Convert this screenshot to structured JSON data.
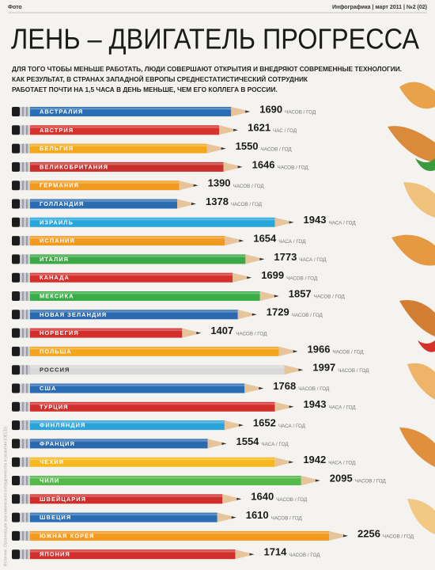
{
  "header": {
    "left": "Фото",
    "right": "Инфографика | март 2011 | №2 (02)"
  },
  "chart_data": {
    "type": "bar",
    "orientation": "horizontal",
    "title": "ЛЕНЬ – ДВИГАТЕЛЬ ПРОГРЕССА",
    "subtitle": [
      "ДЛЯ ТОГО ЧТОБЫ МЕНЬШЕ РАБОТАТЬ, ЛЮДИ СОВЕРШАЮТ ОТКРЫТИЯ И ВНЕДРЯЮТ СОВРЕМЕННЫЕ ТЕХНОЛОГИИ.",
      "КАК РЕЗУЛЬТАТ, В СТРАНАХ ЗАПАДНОЙ ЕВРОПЫ СРЕДНЕСТАТИСТИЧЕСКИЙ СОТРУДНИК",
      "РАБОТАЕТ ПОЧТИ НА 1,5 ЧАСА В ДЕНЬ МЕНЬШЕ, ЧЕМ ЕГО КОЛЛЕГА В РОССИИ."
    ],
    "source": "Источник: Организация экономического сотрудничества и развития (OECD)",
    "categories": [
      "АВСТРАЛИЯ",
      "АВСТРИЯ",
      "БЕЛЬГИЯ",
      "ВЕЛИКОБРИТАНИЯ",
      "ГЕРМАНИЯ",
      "ГОЛЛАНДИЯ",
      "ИЗРАИЛЬ",
      "ИСПАНИЯ",
      "ИТАЛИЯ",
      "КАНАДА",
      "МЕКСИКА",
      "НОВАЯ ЗЕЛАНДИЯ",
      "НОРВЕГИЯ",
      "ПОЛЬША",
      "РОССИЯ",
      "США",
      "ТУРЦИЯ",
      "ФИНЛЯНДИЯ",
      "ФРАНЦИЯ",
      "ЧЕХИЯ",
      "ЧИЛИ",
      "ШВЕЙЦАРИЯ",
      "ШВЕЦИЯ",
      "ЮЖНАЯ КОРЕЯ",
      "ЯПОНИЯ"
    ],
    "values": [
      1690,
      1621,
      1550,
      1646,
      1390,
      1378,
      1943,
      1654,
      1773,
      1699,
      1857,
      1729,
      1407,
      1966,
      1997,
      1768,
      1943,
      1652,
      1554,
      1942,
      2095,
      1640,
      1610,
      2256,
      1714
    ],
    "units": [
      "ЧАСОВ / ГОД",
      "ЧАС / ГОД",
      "ЧАСОВ / ГОД",
      "ЧАСОВ / ГОД",
      "ЧАСОВ / ГОД",
      "ЧАСОВ / ГОД",
      "ЧАСА / ГОД",
      "ЧАСА / ГОД",
      "ЧАСА / ГОД",
      "ЧАСОВ / ГОД",
      "ЧАСОВ / ГОД",
      "ЧАСОВ / ГОД",
      "ЧАСОВ / ГОД",
      "ЧАСОВ / ГОД",
      "ЧАСОВ / ГОД",
      "ЧАСОВ / ГОД",
      "ЧАСА / ГОД",
      "ЧАСА / ГОД",
      "ЧАСА / ГОД",
      "ЧАСА / ГОД",
      "ЧАСОВ / ГОД",
      "ЧАСОВ / ГОД",
      "ЧАСОВ / ГОД",
      "ЧАСОВ / ГОД",
      "ЧАСОВ / ГОД"
    ],
    "colors": [
      "#2a6fb5",
      "#d7312c",
      "#f4a81c",
      "#c9302c",
      "#f29a1f",
      "#2b6db3",
      "#27a6dc",
      "#f29a1f",
      "#3aa845",
      "#d4312c",
      "#3aac48",
      "#2a69b0",
      "#d42e2b",
      "#f4a41d",
      "#d9d9d9",
      "#2a6cb3",
      "#d02f2c",
      "#2ba3db",
      "#2a68b0",
      "#f7b81e",
      "#54b948",
      "#cf2f2c",
      "#2b6db3",
      "#f39a1f",
      "#d02f2c"
    ]
  }
}
